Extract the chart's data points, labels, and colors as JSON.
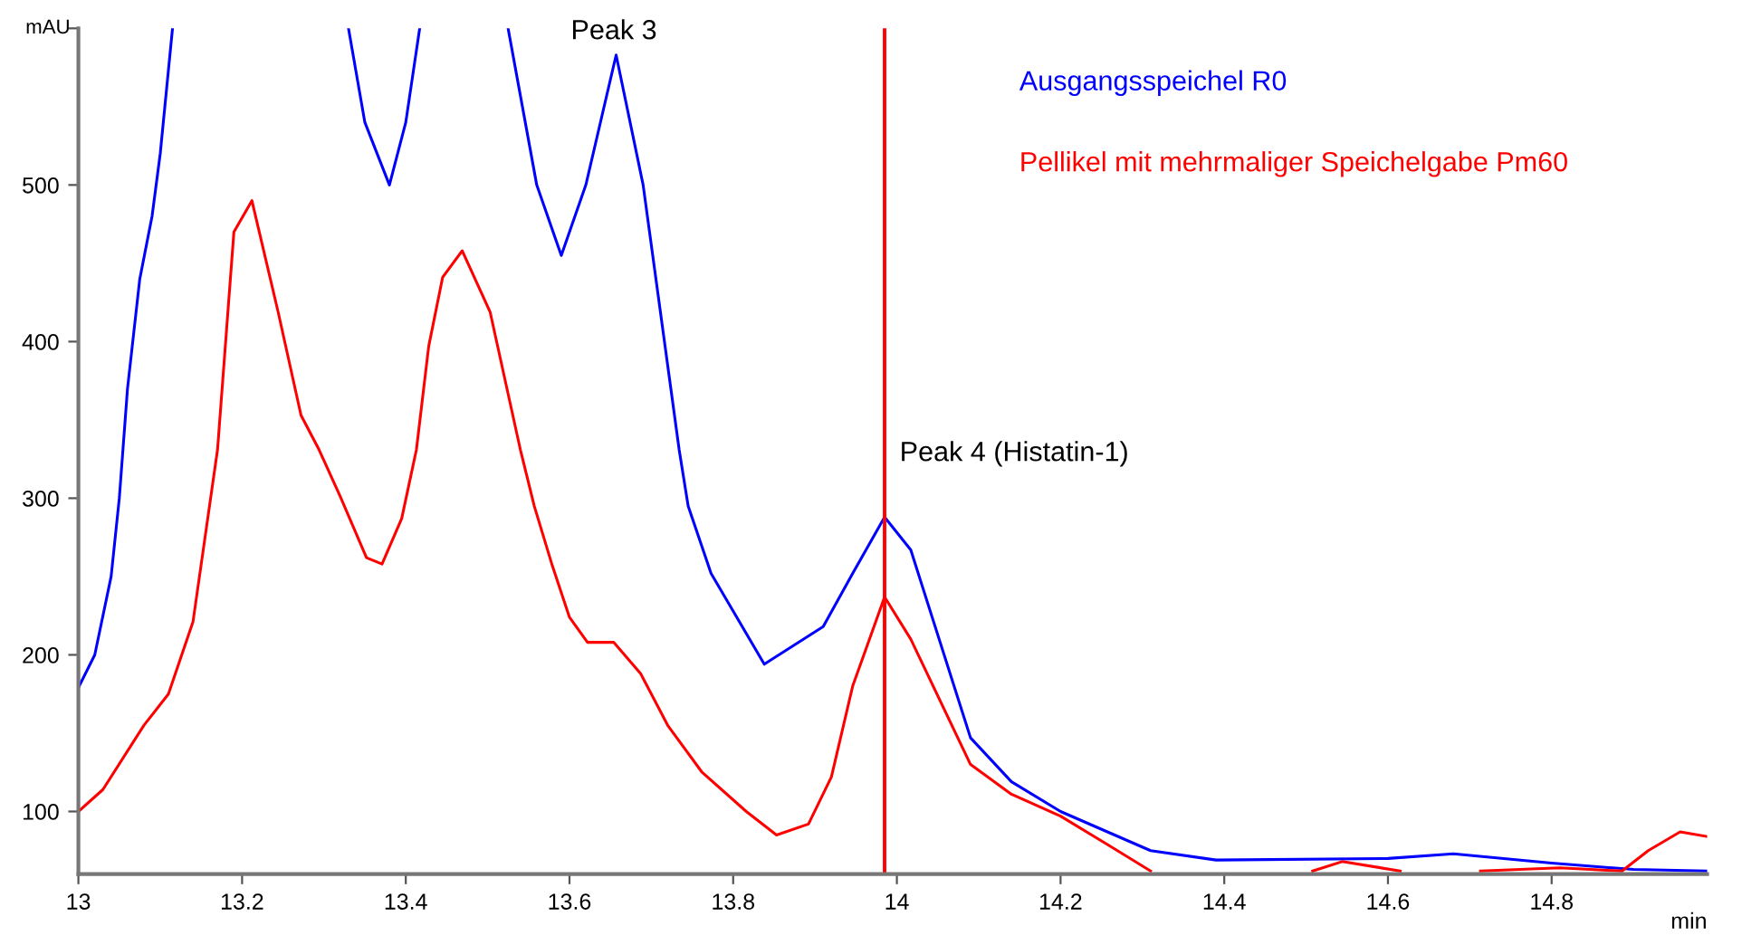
{
  "chart_data": {
    "type": "line",
    "xlabel": "min",
    "ylabel": "mAU",
    "xlim": [
      13,
      14.99
    ],
    "ylim": [
      60,
      600
    ],
    "xticks": [
      13,
      13.2,
      13.4,
      13.6,
      13.8,
      14,
      14.2,
      14.4,
      14.6,
      14.8
    ],
    "yticks": [
      100,
      200,
      300,
      400,
      500,
      {
        "value": 600,
        "label": null
      }
    ],
    "grid": false,
    "legend": "top right",
    "marker": "none",
    "line_style": "solid",
    "series": [
      {
        "name": "Ausgangsspeichel R0",
        "color": "#0000ff",
        "x": [
          13.0,
          13.02,
          13.04,
          13.05,
          13.06,
          13.075,
          13.09,
          13.1,
          13.115,
          13.116,
          13.329,
          13.33,
          13.35,
          13.38,
          13.4,
          13.417,
          13.418,
          13.524,
          13.525,
          13.56,
          13.59,
          13.62,
          13.657,
          13.69,
          13.734,
          13.745,
          13.773,
          13.838,
          13.91,
          13.946,
          13.985,
          14.017,
          14.09,
          14.14,
          14.2,
          14.31,
          14.39,
          14.6,
          14.68,
          14.8,
          14.9,
          14.99
        ],
        "values": [
          179,
          200,
          250,
          300,
          370,
          440,
          480,
          520,
          600,
          null,
          null,
          600,
          540,
          500,
          540,
          600,
          null,
          null,
          600,
          500,
          455,
          500,
          583,
          500,
          331,
          295,
          252,
          194,
          218,
          252,
          288,
          267,
          147,
          119,
          100,
          75,
          69,
          70,
          73,
          67,
          63,
          62
        ]
      },
      {
        "name": "Pellikel mit mehrmaliger Speichelgabe Pm60",
        "color": "#ff0000",
        "x": [
          13.0,
          13.03,
          13.08,
          13.11,
          13.14,
          13.17,
          13.19,
          13.212,
          13.244,
          13.272,
          13.294,
          13.32,
          13.352,
          13.371,
          13.395,
          13.413,
          13.428,
          13.445,
          13.469,
          13.503,
          13.54,
          13.557,
          13.579,
          13.6,
          13.622,
          13.654,
          13.687,
          13.72,
          13.762,
          13.816,
          13.853,
          13.892,
          13.92,
          13.946,
          13.985,
          14.017,
          14.09,
          14.14,
          14.2,
          14.26,
          14.31,
          14.32,
          14.5,
          14.508,
          14.544,
          14.615,
          14.62,
          14.71,
          14.713,
          14.81,
          14.886,
          14.918,
          14.957,
          14.99
        ],
        "values": [
          100,
          114,
          155,
          175,
          221,
          331,
          470,
          490,
          419,
          353,
          331,
          301,
          262,
          258,
          287,
          331,
          397,
          441,
          458,
          419,
          331,
          295,
          257,
          224,
          208,
          208,
          188,
          155,
          125,
          100,
          85,
          92,
          122,
          180,
          237,
          210,
          130,
          111,
          97,
          78,
          62,
          null,
          null,
          62,
          68,
          62,
          null,
          null,
          62,
          64,
          62,
          75,
          87,
          84
        ]
      }
    ],
    "ref_lines": [
      {
        "axis": "x",
        "value": 13.985,
        "color": "#ff0000",
        "line_style": "solid"
      }
    ],
    "annotations": [
      {
        "text": "Peak 3",
        "x": 13.657,
        "y": 583
      },
      {
        "text": "Peak 4 (Histatin-1)",
        "x": 13.985,
        "y": 288
      }
    ]
  }
}
